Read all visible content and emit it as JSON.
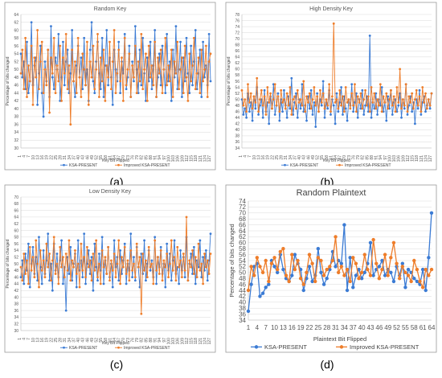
{
  "colors": {
    "ksa": "#3b7bd4",
    "improved": "#ee7d2a",
    "grid": "#d9d9d9",
    "frame": "#9a9a9a"
  },
  "panel_captions": [
    "(a)",
    "(b)",
    "(c)",
    "(d)"
  ],
  "chart_data": [
    {
      "type": "line",
      "title": "Random Key",
      "xlabel": "Key Bit Flipped",
      "ylabel": "Percentage of bits changed",
      "ylim": [
        30,
        64
      ],
      "yticks": [
        30,
        32,
        34,
        36,
        38,
        40,
        42,
        44,
        46,
        48,
        50,
        52,
        54,
        56,
        58,
        60,
        62,
        64
      ],
      "xticks": [
        "1",
        "4",
        "7",
        "10",
        "13",
        "16",
        "19",
        "22",
        "25",
        "28",
        "31",
        "34",
        "37",
        "40",
        "43",
        "46",
        "49",
        "52",
        "55",
        "58",
        "61",
        "64",
        "67",
        "70",
        "73",
        "76",
        "79",
        "82",
        "85",
        "88",
        "91",
        "94",
        "97",
        "100",
        "103",
        "106",
        "109",
        "112",
        "115",
        "118",
        "121",
        "124",
        "127"
      ],
      "grid": true,
      "legend": "bottom",
      "series": [
        {
          "name": "KSA-PRESENT",
          "values": [
            54,
            48,
            52,
            45,
            57,
            44,
            47,
            62,
            46,
            51,
            53,
            41,
            49,
            56,
            44,
            38,
            52,
            47,
            55,
            43,
            61,
            48,
            45,
            53,
            50,
            59,
            42,
            48,
            57,
            46,
            52,
            55,
            44,
            49,
            60,
            47,
            43,
            51,
            56,
            48,
            53,
            45,
            58,
            46,
            50,
            42,
            55,
            62,
            47,
            44,
            52,
            57,
            49,
            45,
            58,
            43,
            51,
            60,
            46,
            53,
            48,
            41,
            55,
            50,
            47,
            57,
            44,
            52,
            49,
            59,
            45,
            48,
            56,
            43,
            52,
            47,
            61,
            50,
            44,
            55,
            46,
            58,
            49,
            42,
            53,
            47,
            57,
            45,
            51,
            60,
            43,
            48,
            54,
            46,
            56,
            50,
            44,
            59,
            47,
            52,
            42,
            55,
            48,
            61,
            45,
            50,
            57,
            43,
            53,
            47,
            58,
            49,
            44,
            56,
            46,
            52,
            60,
            45,
            49,
            55,
            43,
            57,
            48,
            51,
            46,
            59,
            47
          ]
        },
        {
          "name": "Improved KSA-PRESENT",
          "values": [
            49,
            55,
            45,
            58,
            43,
            51,
            47,
            56,
            41,
            53,
            48,
            60,
            45,
            52,
            57,
            44,
            50,
            46,
            55,
            39,
            53,
            49,
            58,
            44,
            51,
            47,
            56,
            42,
            53,
            49,
            59,
            45,
            51,
            36,
            55,
            47,
            52,
            44,
            58,
            48,
            43,
            54,
            50,
            46,
            57,
            41,
            52,
            48,
            56,
            45,
            50,
            59,
            43,
            53,
            47,
            55,
            42,
            51,
            48,
            57,
            45,
            52,
            60,
            44,
            49,
            55,
            47,
            53,
            42,
            58,
            46,
            50,
            54,
            43,
            51,
            48,
            56,
            44,
            52,
            47,
            59,
            45,
            50,
            54,
            42,
            56,
            48,
            51,
            46,
            57,
            43,
            53,
            49,
            55,
            44,
            50,
            58,
            46,
            51,
            47,
            55,
            43,
            52,
            49,
            57,
            45,
            50,
            53,
            44,
            56,
            48,
            42,
            54,
            47,
            51,
            58,
            45,
            49,
            53,
            44,
            55,
            47,
            50,
            56,
            43,
            52,
            54
          ]
        }
      ]
    },
    {
      "type": "line",
      "title": "High Density Key",
      "xlabel": "Key Bit Flipped",
      "ylabel": "Percentage of bits changed",
      "ylim": [
        34,
        78
      ],
      "yticks": [
        34,
        36,
        38,
        40,
        42,
        44,
        46,
        48,
        50,
        52,
        54,
        56,
        58,
        60,
        62,
        64,
        66,
        68,
        70,
        72,
        74,
        76,
        78
      ],
      "xticks": [
        "1",
        "4",
        "7",
        "10",
        "13",
        "16",
        "19",
        "22",
        "25",
        "28",
        "31",
        "34",
        "37",
        "40",
        "43",
        "46",
        "49",
        "52",
        "55",
        "58",
        "61",
        "64",
        "67",
        "70",
        "73",
        "76",
        "79",
        "82",
        "85",
        "88",
        "91",
        "94",
        "97",
        "100",
        "103",
        "106",
        "109",
        "112",
        "115",
        "118",
        "121",
        "124",
        "127"
      ],
      "grid": true,
      "legend": "bottom",
      "series": [
        {
          "name": "KSA-PRESENT",
          "values": [
            50,
            45,
            47,
            44,
            52,
            46,
            49,
            43,
            51,
            47,
            54,
            45,
            48,
            50,
            44,
            53,
            46,
            49,
            42,
            51,
            47,
            55,
            45,
            48,
            52,
            43,
            50,
            46,
            53,
            48,
            44,
            51,
            47,
            57,
            45,
            49,
            52,
            44,
            50,
            47,
            55,
            46,
            48,
            43,
            51,
            47,
            53,
            45,
            49,
            41,
            52,
            46,
            50,
            48,
            56,
            44,
            49,
            47,
            53,
            45,
            50,
            48,
            42,
            52,
            46,
            49,
            54,
            45,
            51,
            47,
            43,
            50,
            48,
            55,
            46,
            49,
            52,
            44,
            50,
            47,
            53,
            45,
            48,
            51,
            46,
            71,
            44,
            49,
            47,
            52,
            45,
            50,
            48,
            54,
            46,
            49,
            43,
            51,
            47,
            53,
            45,
            49,
            50,
            46,
            48,
            52,
            44,
            50,
            47,
            55,
            45,
            48,
            51,
            46,
            49,
            42,
            50,
            47,
            53,
            45,
            49,
            51,
            46,
            48,
            50,
            47,
            52
          ]
        },
        {
          "name": "Improved KSA-PRESENT",
          "values": [
            53,
            48,
            50,
            46,
            55,
            49,
            52,
            47,
            51,
            49,
            57,
            46,
            50,
            53,
            48,
            51,
            45,
            54,
            49,
            52,
            47,
            50,
            55,
            48,
            51,
            46,
            53,
            49,
            50,
            47,
            52,
            48,
            54,
            45,
            50,
            51,
            47,
            53,
            49,
            50,
            48,
            56,
            46,
            51,
            49,
            52,
            47,
            50,
            54,
            48,
            51,
            46,
            53,
            49,
            52,
            47,
            50,
            48,
            55,
            46,
            51,
            75,
            49,
            50,
            47,
            53,
            48,
            51,
            46,
            54,
            49,
            50,
            47,
            52,
            48,
            55,
            46,
            51,
            49,
            52,
            47,
            50,
            53,
            48,
            51,
            46,
            54,
            49,
            52,
            47,
            50,
            48,
            55,
            46,
            51,
            49,
            52,
            47,
            50,
            53,
            48,
            51,
            46,
            54,
            49,
            60,
            47,
            50,
            48,
            55,
            46,
            51,
            49,
            52,
            47,
            50,
            53,
            48,
            51,
            46,
            54,
            49,
            52,
            47,
            50,
            48,
            52
          ]
        }
      ]
    },
    {
      "type": "line",
      "title": "Low Density Key",
      "xlabel": "Key Bit Flipped",
      "ylabel": "Percentage of bits changed",
      "ylim": [
        30,
        70
      ],
      "yticks": [
        30,
        32,
        34,
        36,
        38,
        40,
        42,
        44,
        46,
        48,
        50,
        52,
        54,
        56,
        58,
        60,
        62,
        64,
        66,
        68,
        70
      ],
      "xticks": [
        "1",
        "4",
        "7",
        "10",
        "13",
        "16",
        "19",
        "22",
        "25",
        "28",
        "31",
        "34",
        "37",
        "40",
        "43",
        "46",
        "49",
        "52",
        "55",
        "58",
        "61",
        "64",
        "67",
        "70",
        "73",
        "76",
        "79",
        "82",
        "85",
        "88",
        "91",
        "94",
        "97",
        "100",
        "103",
        "106",
        "109",
        "112",
        "115",
        "118",
        "121",
        "124",
        "127"
      ],
      "grid": true,
      "legend": "bottom",
      "series": [
        {
          "name": "KSA-PRESENT",
          "values": [
            46,
            51,
            44,
            53,
            48,
            56,
            43,
            50,
            55,
            47,
            52,
            45,
            58,
            49,
            44,
            54,
            47,
            51,
            59,
            45,
            50,
            42,
            56,
            48,
            53,
            46,
            51,
            57,
            44,
            49,
            36,
            52,
            47,
            55,
            45,
            50,
            53,
            43,
            57,
            48,
            51,
            46,
            59,
            44,
            50,
            54,
            47,
            52,
            42,
            56,
            49,
            45,
            53,
            48,
            58,
            44,
            51,
            47,
            55,
            46,
            50,
            43,
            57,
            49,
            52,
            45,
            54,
            47,
            51,
            56,
            44,
            50,
            48,
            59,
            46,
            52,
            45,
            55,
            49,
            43,
            53,
            47,
            57,
            45,
            50,
            54,
            48,
            51,
            46,
            58,
            44,
            52,
            49,
            55,
            47,
            50,
            43,
            56,
            48,
            53,
            45,
            51,
            57,
            47,
            49,
            44,
            54,
            48,
            52,
            46,
            58,
            45,
            50,
            53,
            47,
            55,
            44,
            51,
            49,
            57,
            46,
            52,
            48,
            54,
            45,
            51,
            59
          ]
        },
        {
          "name": "Improved KSA-PRESENT",
          "values": [
            49,
            45,
            53,
            47,
            51,
            44,
            55,
            48,
            52,
            46,
            57,
            50,
            43,
            54,
            48,
            51,
            46,
            56,
            49,
            53,
            45,
            51,
            58,
            47,
            50,
            44,
            55,
            49,
            52,
            46,
            53,
            48,
            57,
            45,
            51,
            49,
            54,
            47,
            50,
            43,
            56,
            48,
            52,
            46,
            55,
            49,
            51,
            45,
            53,
            48,
            57,
            46,
            50,
            44,
            54,
            49,
            52,
            47,
            55,
            45,
            51,
            48,
            53,
            46,
            50,
            57,
            44,
            52,
            49,
            55,
            47,
            51,
            45,
            54,
            48,
            50,
            46,
            56,
            49,
            52,
            35,
            53,
            48,
            51,
            46,
            55,
            49,
            50,
            44,
            57,
            48,
            52,
            47,
            54,
            45,
            51,
            49,
            53,
            46,
            50,
            57,
            48,
            52,
            45,
            55,
            49,
            51,
            46,
            53,
            48,
            64,
            45,
            51,
            49,
            54,
            47,
            52,
            46,
            56,
            48,
            50,
            44,
            53,
            49,
            51,
            47,
            53
          ]
        }
      ]
    },
    {
      "type": "line",
      "title": "Random Plaintext",
      "xlabel": "Plaintext Bit Flipped",
      "ylabel": "Percentage of bits changed",
      "ylim": [
        34,
        74
      ],
      "yticks": [
        34,
        36,
        38,
        40,
        42,
        44,
        46,
        48,
        50,
        52,
        54,
        56,
        58,
        60,
        62,
        64,
        66,
        68,
        70,
        72,
        74
      ],
      "xticks": [
        "1",
        "4",
        "7",
        "10",
        "13",
        "16",
        "19",
        "22",
        "25",
        "28",
        "31",
        "34",
        "37",
        "40",
        "43",
        "46",
        "49",
        "52",
        "55",
        "58",
        "61",
        "64"
      ],
      "grid": true,
      "legend": "bottom",
      "series": [
        {
          "name": "KSA-PRESENT",
          "values": [
            37,
            46,
            52,
            53,
            42,
            43,
            45,
            46,
            54,
            52,
            50,
            56,
            51,
            48,
            47,
            49,
            56,
            53,
            51,
            44,
            48,
            52,
            47,
            49,
            58,
            50,
            46,
            48,
            51,
            57,
            52,
            54,
            53,
            66,
            44,
            55,
            45,
            49,
            51,
            48,
            50,
            53,
            60,
            49,
            51,
            52,
            54,
            49,
            51,
            50,
            47,
            52,
            49,
            53,
            45,
            51,
            50,
            48,
            47,
            46,
            51,
            44,
            55,
            70
          ]
        },
        {
          "name": "Improved KSA-PRESENT",
          "values": [
            44,
            52,
            49,
            55,
            52,
            50,
            54,
            47,
            53,
            55,
            51,
            57,
            58,
            49,
            47,
            56,
            51,
            54,
            48,
            46,
            50,
            56,
            53,
            47,
            55,
            54,
            49,
            51,
            52,
            54,
            62,
            50,
            52,
            49,
            51,
            47,
            55,
            53,
            48,
            50,
            56,
            51,
            49,
            61,
            53,
            48,
            51,
            56,
            49,
            55,
            60,
            53,
            48,
            52,
            50,
            49,
            47,
            54,
            51,
            47,
            45,
            51,
            49,
            51
          ]
        }
      ]
    }
  ]
}
